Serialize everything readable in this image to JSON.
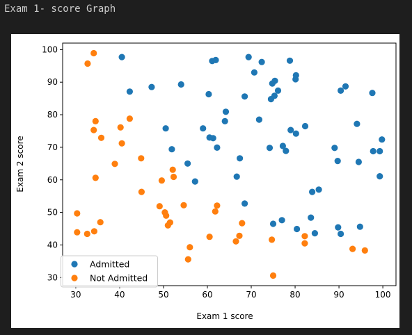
{
  "cell": {
    "title": "Exam 1- score Graph"
  },
  "chart_data": {
    "type": "scatter",
    "title": "",
    "xlabel": "Exam 1 score",
    "ylabel": "Exam 2 score",
    "xlim": [
      27,
      103
    ],
    "ylim": [
      27.5,
      102
    ],
    "xticks": [
      30,
      40,
      50,
      60,
      70,
      80,
      90,
      100
    ],
    "yticks": [
      30,
      40,
      50,
      60,
      70,
      80,
      90,
      100
    ],
    "legend_position": "bottom-left",
    "grid": false,
    "series": [
      {
        "name": "Admitted",
        "color": "#1f77b4",
        "points": [
          [
            40.5,
            97.7
          ],
          [
            61.1,
            96.5
          ],
          [
            61.9,
            96.8
          ],
          [
            69.4,
            97.7
          ],
          [
            72.4,
            96.2
          ],
          [
            78.8,
            96.6
          ],
          [
            70.7,
            93.0
          ],
          [
            80.2,
            92.1
          ],
          [
            80.1,
            90.9
          ],
          [
            75.4,
            90.4
          ],
          [
            74.8,
            89.6
          ],
          [
            54.0,
            89.3
          ],
          [
            47.3,
            88.5
          ],
          [
            91.5,
            88.7
          ],
          [
            90.4,
            87.4
          ],
          [
            97.6,
            86.7
          ],
          [
            42.3,
            87.1
          ],
          [
            60.3,
            86.3
          ],
          [
            76.1,
            87.4
          ],
          [
            75.3,
            85.8
          ],
          [
            74.5,
            84.8
          ],
          [
            68.5,
            85.6
          ],
          [
            64.2,
            80.9
          ],
          [
            64.0,
            78.0
          ],
          [
            71.8,
            78.5
          ],
          [
            82.3,
            76.5
          ],
          [
            94.1,
            77.2
          ],
          [
            50.5,
            75.8
          ],
          [
            59.0,
            75.8
          ],
          [
            79.0,
            75.3
          ],
          [
            80.2,
            74.2
          ],
          [
            60.5,
            73.0
          ],
          [
            61.3,
            72.8
          ],
          [
            99.8,
            72.4
          ],
          [
            62.2,
            69.9
          ],
          [
            51.9,
            69.4
          ],
          [
            74.2,
            69.8
          ],
          [
            77.2,
            70.4
          ],
          [
            77.9,
            68.9
          ],
          [
            89.0,
            69.8
          ],
          [
            97.8,
            68.8
          ],
          [
            99.3,
            68.8
          ],
          [
            67.4,
            66.6
          ],
          [
            89.7,
            65.8
          ],
          [
            94.5,
            65.5
          ],
          [
            55.5,
            65.0
          ],
          [
            57.2,
            59.5
          ],
          [
            66.7,
            61.0
          ],
          [
            99.3,
            61.1
          ],
          [
            85.4,
            57.0
          ],
          [
            83.9,
            56.3
          ],
          [
            68.5,
            52.7
          ],
          [
            83.6,
            48.4
          ],
          [
            77.0,
            47.6
          ],
          [
            75.0,
            46.5
          ],
          [
            94.8,
            45.6
          ],
          [
            89.8,
            45.4
          ],
          [
            80.4,
            44.9
          ],
          [
            84.5,
            43.6
          ],
          [
            90.4,
            43.4
          ]
        ]
      },
      {
        "name": "Not Admitted",
        "color": "#ff7f0e",
        "points": [
          [
            34.1,
            98.9
          ],
          [
            32.7,
            95.7
          ],
          [
            40.2,
            76.1
          ],
          [
            42.3,
            78.8
          ],
          [
            34.5,
            78.0
          ],
          [
            34.1,
            75.3
          ],
          [
            35.8,
            72.9
          ],
          [
            40.5,
            71.2
          ],
          [
            44.9,
            66.6
          ],
          [
            38.9,
            64.9
          ],
          [
            52.1,
            63.1
          ],
          [
            34.5,
            60.6
          ],
          [
            49.6,
            59.8
          ],
          [
            52.3,
            60.9
          ],
          [
            45.0,
            56.3
          ],
          [
            49.1,
            51.9
          ],
          [
            54.6,
            52.2
          ],
          [
            62.2,
            52.1
          ],
          [
            61.8,
            50.3
          ],
          [
            50.3,
            50.0
          ],
          [
            50.6,
            49.0
          ],
          [
            51.5,
            46.9
          ],
          [
            51.0,
            46.0
          ],
          [
            30.3,
            49.7
          ],
          [
            35.6,
            47.0
          ],
          [
            67.9,
            46.7
          ],
          [
            30.3,
            43.9
          ],
          [
            32.6,
            43.4
          ],
          [
            34.2,
            44.2
          ],
          [
            60.5,
            42.5
          ],
          [
            67.3,
            42.8
          ],
          [
            66.5,
            41.1
          ],
          [
            74.7,
            41.6
          ],
          [
            82.2,
            42.7
          ],
          [
            82.2,
            40.5
          ],
          [
            56.0,
            39.3
          ],
          [
            93.1,
            38.8
          ],
          [
            95.9,
            38.3
          ],
          [
            55.6,
            35.6
          ],
          [
            75.0,
            30.6
          ]
        ]
      }
    ]
  }
}
